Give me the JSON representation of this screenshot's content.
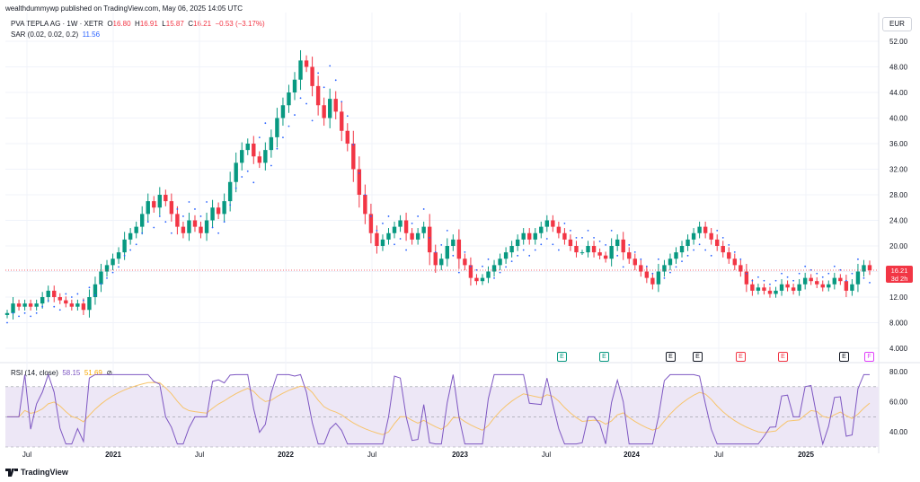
{
  "header": {
    "text": "wealthdummywp published on TradingView.com, May 06, 2025 14:05 UTC"
  },
  "legend_main": {
    "symbol": "PVA TEPLA AG · 1W · XETR",
    "o_label": "O",
    "o_value": "16.80",
    "h_label": "H",
    "h_value": "16.91",
    "l_label": "L",
    "l_value": "15.87",
    "c_label": "C",
    "c_value": "16.21",
    "change": "−0.53 (−3.17%)"
  },
  "legend_sar": {
    "name": "SAR (0.02, 0.02, 0.2)",
    "value": "11.56"
  },
  "legend_rsi": {
    "name": "RSI (14, close)",
    "value1": "58.15",
    "value2": "51.69"
  },
  "currency": "EUR",
  "price_tag": {
    "price": "16.21",
    "time": "3d 2h"
  },
  "footer": {
    "logo_text": "TradingView"
  },
  "colors": {
    "up": "#089981",
    "down": "#f23645",
    "sar": "#2962ff",
    "rsi": "#7e57c2",
    "rsi_ma": "#f7c46c",
    "rsi_band": "#ede7f6"
  },
  "events": [
    {
      "label": "E",
      "color": "#089981"
    },
    {
      "label": "E",
      "color": "#089981"
    },
    {
      "label": "E",
      "color": "#131722"
    },
    {
      "label": "E",
      "color": "#131722"
    },
    {
      "label": "E",
      "color": "#f23645"
    },
    {
      "label": "E",
      "color": "#f23645"
    },
    {
      "label": "E",
      "color": "#131722"
    },
    {
      "label": "F",
      "color": "#e040fb"
    }
  ],
  "chart_data": [
    {
      "type": "candlestick",
      "y_ticks": [
        "52.00",
        "48.00",
        "44.00",
        "40.00",
        "36.00",
        "32.00",
        "28.00",
        "24.00",
        "20.00",
        "16.00",
        "12.00",
        "8.000",
        "4.000"
      ],
      "ylim": [
        4,
        52
      ],
      "x_ticks": [
        "Jul",
        "2021",
        "Jul",
        "2022",
        "Jul",
        "2023",
        "Jul",
        "2024",
        "Jul",
        "2025"
      ],
      "series_close_path": [
        9.5,
        11,
        10.5,
        11,
        10.5,
        11,
        12,
        13,
        12,
        11.5,
        11,
        10.5,
        11,
        10,
        12,
        14,
        16,
        17,
        18,
        19,
        21,
        22,
        23,
        25,
        27,
        26,
        28,
        27,
        25,
        23,
        22,
        24,
        23,
        22,
        24,
        26,
        25,
        27,
        30,
        33,
        35,
        36,
        34,
        33,
        35,
        37,
        40,
        42,
        44,
        46,
        49,
        48,
        45,
        42,
        40,
        43,
        41,
        38,
        36,
        32,
        28,
        25,
        22,
        20,
        21,
        22,
        23,
        24,
        22,
        21,
        22,
        23,
        19,
        17,
        18,
        20,
        21,
        18,
        17,
        15,
        14.5,
        15,
        16,
        17,
        18,
        19,
        20,
        21,
        22,
        21,
        22,
        23,
        24,
        23,
        22,
        21,
        20,
        19,
        19,
        20,
        19,
        18.5,
        18,
        20,
        21,
        19,
        18,
        17,
        16,
        15,
        14,
        16,
        17,
        18,
        19,
        20,
        21,
        22,
        23,
        22,
        21,
        20,
        19,
        18,
        17,
        16,
        14,
        13,
        13.5,
        13,
        12.5,
        13,
        14,
        13.5,
        13,
        14,
        15,
        14.5,
        14,
        13.5,
        14,
        15,
        14.5,
        13,
        14,
        16,
        17,
        16.2
      ],
      "sar_dots_note": "Parabolic SAR dots above/below price"
    },
    {
      "type": "line",
      "name": "RSI (14, close)",
      "y_ticks": [
        "80.00",
        "60.00",
        "40.00"
      ],
      "ylim": [
        30,
        80
      ]
    }
  ]
}
